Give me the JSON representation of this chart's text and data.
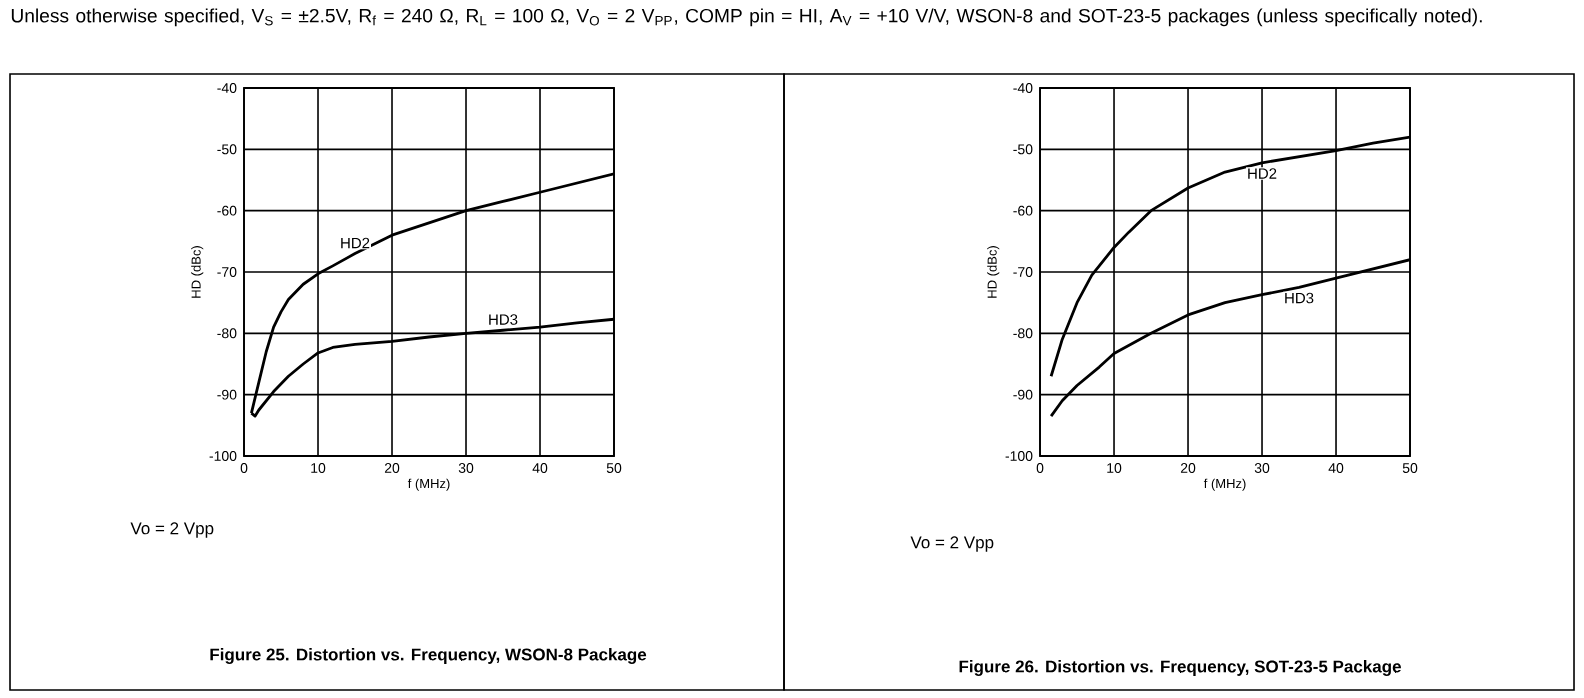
{
  "chart_data": [
    {
      "type": "line",
      "subtitle": "Unless otherwise specified, V$_{S}$ = ±2.5V, R$_{f}$ = 240 Ω, R$_{L}$ = 100 Ω, V$_{O}$ = 2 V$_{PP}$, COMP pin = HI, A$_{V}$ = +10 V/V, WSON-8 and SOT-23-5 packages (unless specifically noted).",
      "title": "Figure 25. Distortion vs. Frequency, WSON-8 Package",
      "xlabel": "f (MHz)",
      "ylabel": "HD (dBc)",
      "annotations": [
        "Vo = 2 Vpp"
      ],
      "xlim": [
        0,
        50
      ],
      "ylim": [
        -100,
        -40
      ],
      "xticks": [
        0,
        10,
        20,
        30,
        40,
        50
      ],
      "yticks": [
        -100,
        -90,
        -80,
        -70,
        -60,
        -50,
        -40
      ],
      "grid": true,
      "series": [
        {
          "name": "HD2",
          "color": "#000000",
          "x": [
            1,
            2,
            3,
            4,
            5,
            6,
            8,
            10,
            12,
            15,
            20,
            25,
            30,
            35,
            40,
            45,
            50
          ],
          "values": [
            -93,
            -88,
            -83,
            -79,
            -76.5,
            -74.5,
            -72,
            -70.3,
            -69,
            -67,
            -64,
            -62,
            -60,
            -58.5,
            -57,
            -55.5,
            -54
          ]
        },
        {
          "name": "HD3",
          "color": "#000000",
          "x": [
            1,
            1.5,
            2,
            3,
            4,
            6,
            8,
            10,
            12,
            15,
            20,
            25,
            30,
            35,
            40,
            45,
            50
          ],
          "values": [
            -93,
            -93.5,
            -92.5,
            -91,
            -89.5,
            -87,
            -85,
            -83.2,
            -82.3,
            -81.8,
            -81.3,
            -80.6,
            -80,
            -79.5,
            -79,
            -78.3,
            -77.7
          ]
        }
      ]
    },
    {
      "type": "line",
      "title": "Figure 26. Distortion vs. Frequency, SOT-23-5 Package",
      "xlabel": "f (MHz)",
      "ylabel": "HD (dBc)",
      "annotations": [
        "Vo = 2 Vpp"
      ],
      "xlim": [
        0,
        50
      ],
      "ylim": [
        -100,
        -40
      ],
      "xticks": [
        0,
        10,
        20,
        30,
        40,
        50
      ],
      "yticks": [
        -100,
        -90,
        -80,
        -70,
        -60,
        -50,
        -40
      ],
      "grid": true,
      "series": [
        {
          "name": "HD2",
          "color": "#000000",
          "x": [
            1.5,
            3,
            5,
            7,
            10,
            12,
            15,
            20,
            25,
            30,
            35,
            40,
            45,
            50
          ],
          "values": [
            -87,
            -81,
            -75,
            -70.5,
            -66,
            -63.5,
            -60,
            -56.3,
            -53.7,
            -52.2,
            -51.2,
            -50.2,
            -49,
            -48
          ]
        },
        {
          "name": "HD3",
          "color": "#000000",
          "x": [
            1.5,
            3,
            5,
            8,
            10,
            15,
            20,
            25,
            30,
            35,
            40,
            45,
            50
          ],
          "values": [
            -93.5,
            -91,
            -88.5,
            -85.5,
            -83.3,
            -80,
            -77,
            -75,
            -73.7,
            -72.5,
            -71,
            -69.5,
            -68
          ]
        }
      ]
    }
  ]
}
